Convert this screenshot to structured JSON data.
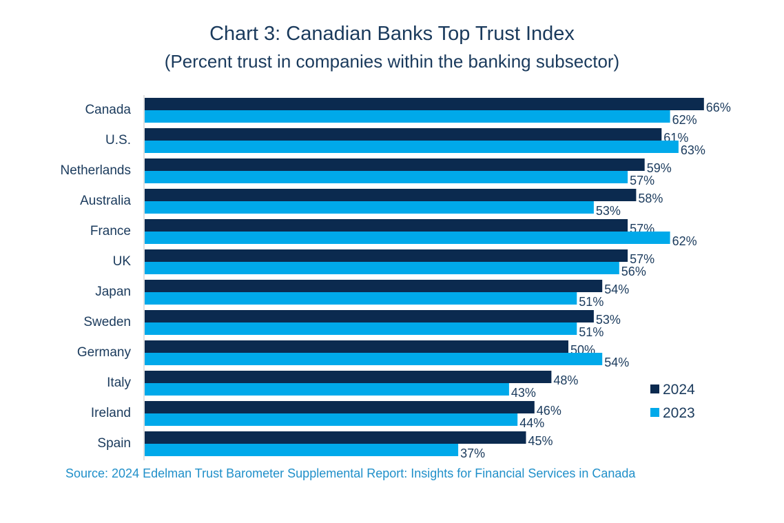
{
  "title": "Chart 3: Canadian Banks Top Trust Index",
  "subtitle": "(Percent trust in companies within the banking subsector)",
  "source": "Source: 2024 Edelman Trust Barometer Supplemental Report: Insights for Financial Services in Canada",
  "colors": {
    "series_2024": "#0b2a4f",
    "series_2023": "#00a9ea",
    "text": "#1a3a5c",
    "source": "#1f8fc9"
  },
  "chart_data": {
    "type": "bar",
    "orientation": "horizontal",
    "title": "Chart 3: Canadian Banks Top Trust Index",
    "subtitle": "(Percent trust in companies within the banking subsector)",
    "categories": [
      "Canada",
      "U.S.",
      "Netherlands",
      "Australia",
      "France",
      "UK",
      "Japan",
      "Sweden",
      "Germany",
      "Italy",
      "Ireland",
      "Spain"
    ],
    "series": [
      {
        "name": "2024",
        "values": [
          66,
          61,
          59,
          58,
          57,
          57,
          54,
          53,
          50,
          48,
          46,
          45
        ]
      },
      {
        "name": "2023",
        "values": [
          62,
          63,
          57,
          53,
          62,
          56,
          51,
          51,
          54,
          43,
          44,
          37
        ]
      }
    ],
    "value_suffix": "%",
    "xlim": [
      0,
      66
    ],
    "grid": false,
    "legend_position": "bottom-right"
  }
}
